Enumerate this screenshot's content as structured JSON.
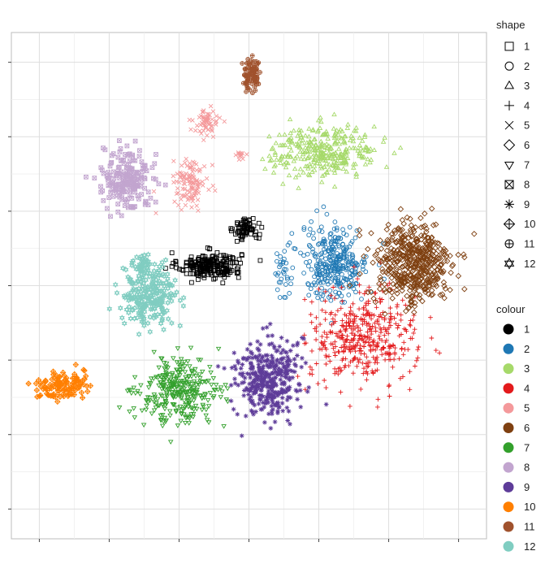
{
  "chart_data": {
    "type": "scatter",
    "title": "",
    "xlabel": "",
    "ylabel": "",
    "grid": true,
    "xlim": [
      -34,
      34
    ],
    "ylim": [
      -34,
      34
    ],
    "x_gridlines": [
      -30,
      -20,
      -10,
      0,
      10,
      20,
      30
    ],
    "y_gridlines": [
      -30,
      -20,
      -10,
      0,
      10,
      20,
      30
    ],
    "legend_position": "right",
    "legends": {
      "shape": {
        "title": "shape",
        "items": [
          {
            "label": "1",
            "symbol": "open-square"
          },
          {
            "label": "2",
            "symbol": "open-circle"
          },
          {
            "label": "3",
            "symbol": "open-triangle-up"
          },
          {
            "label": "4",
            "symbol": "plus"
          },
          {
            "label": "5",
            "symbol": "cross"
          },
          {
            "label": "6",
            "symbol": "open-diamond"
          },
          {
            "label": "7",
            "symbol": "open-triangle-down"
          },
          {
            "label": "8",
            "symbol": "square-cross"
          },
          {
            "label": "9",
            "symbol": "asterisk"
          },
          {
            "label": "10",
            "symbol": "diamond-plus"
          },
          {
            "label": "11",
            "symbol": "circle-plus"
          },
          {
            "label": "12",
            "symbol": "star-of-david"
          }
        ]
      },
      "colour": {
        "title": "colour",
        "items": [
          {
            "label": "1",
            "color": "#000000"
          },
          {
            "label": "2",
            "color": "#1F78B4"
          },
          {
            "label": "3",
            "color": "#A6D96A"
          },
          {
            "label": "4",
            "color": "#E31A1C"
          },
          {
            "label": "5",
            "color": "#F4999B"
          },
          {
            "label": "6",
            "color": "#7F4011"
          },
          {
            "label": "7",
            "color": "#33A02C"
          },
          {
            "label": "8",
            "color": "#C2A5CF"
          },
          {
            "label": "9",
            "color": "#5E3C99"
          },
          {
            "label": "10",
            "color": "#FF7F00"
          },
          {
            "label": "11",
            "color": "#A0522D"
          },
          {
            "label": "12",
            "color": "#80CDC1"
          }
        ]
      }
    },
    "series": [
      {
        "group": "1",
        "clusters": [
          {
            "cx": -5.6,
            "cy": 2.7,
            "sx": 2.8,
            "sy": 1.1,
            "n": 230
          },
          {
            "cx": -0.4,
            "cy": 7.6,
            "sx": 1.1,
            "sy": 0.9,
            "n": 70
          }
        ]
      },
      {
        "group": "2",
        "clusters": [
          {
            "cx": 12.3,
            "cy": 3.1,
            "sx": 3.0,
            "sy": 3.1,
            "n": 320
          },
          {
            "cx": 4.8,
            "cy": 1.4,
            "sx": 0.7,
            "sy": 2.0,
            "n": 30
          }
        ]
      },
      {
        "group": "3",
        "clusters": [
          {
            "cx": 10.8,
            "cy": 18.0,
            "sx": 4.8,
            "sy": 2.2,
            "n": 330
          }
        ]
      },
      {
        "group": "4",
        "clusters": [
          {
            "cx": 16.3,
            "cy": -7.0,
            "sx": 4.7,
            "sy": 3.8,
            "n": 420
          }
        ]
      },
      {
        "group": "5",
        "clusters": [
          {
            "cx": -8.3,
            "cy": 14.0,
            "sx": 1.6,
            "sy": 1.9,
            "n": 110
          },
          {
            "cx": -6.2,
            "cy": 21.7,
            "sx": 1.1,
            "sy": 1.1,
            "n": 60
          },
          {
            "cx": -1.3,
            "cy": 17.5,
            "sx": 0.5,
            "sy": 0.4,
            "n": 12
          }
        ]
      },
      {
        "group": "6",
        "clusters": [
          {
            "cx": 23.4,
            "cy": 2.9,
            "sx": 3.5,
            "sy": 3.6,
            "n": 480
          }
        ]
      },
      {
        "group": "7",
        "clusters": [
          {
            "cx": -9.8,
            "cy": -14.2,
            "sx": 3.6,
            "sy": 2.6,
            "n": 310
          }
        ]
      },
      {
        "group": "8",
        "clusters": [
          {
            "cx": -17.5,
            "cy": 14.4,
            "sx": 2.2,
            "sy": 2.6,
            "n": 200
          }
        ]
      },
      {
        "group": "9",
        "clusters": [
          {
            "cx": 2.7,
            "cy": -12.4,
            "sx": 2.8,
            "sy": 3.3,
            "n": 380
          }
        ]
      },
      {
        "group": "10",
        "clusters": [
          {
            "cx": -26.9,
            "cy": -13.5,
            "sx": 2.1,
            "sy": 1.2,
            "n": 120
          }
        ]
      },
      {
        "group": "11",
        "clusters": [
          {
            "cx": 0.3,
            "cy": 28.4,
            "sx": 0.8,
            "sy": 1.3,
            "n": 90
          }
        ]
      },
      {
        "group": "12",
        "clusters": [
          {
            "cx": -14.1,
            "cy": -1.4,
            "sx": 2.5,
            "sy": 2.3,
            "n": 230
          },
          {
            "cx": -15.0,
            "cy": 2.6,
            "sx": 0.7,
            "sy": 1.1,
            "n": 40
          }
        ]
      }
    ]
  }
}
